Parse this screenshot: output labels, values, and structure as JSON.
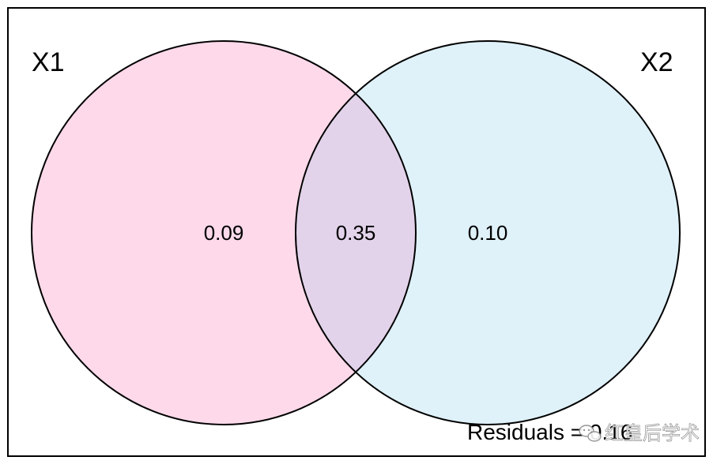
{
  "diagram": {
    "type": "venn-2",
    "sets": [
      {
        "name": "X1",
        "fill": "#fdd9ea"
      },
      {
        "name": "X2",
        "fill": "#dff1f9"
      }
    ],
    "overlap_fill": "#e2d3ea",
    "outline_color": "#000000",
    "regions": {
      "x1_only": "0.09",
      "intersection": "0.35",
      "x2_only": "0.10"
    },
    "residuals": "Residuals = 0.16"
  },
  "watermark": {
    "text": "红皇后学术",
    "icon": "wechat-icon"
  }
}
